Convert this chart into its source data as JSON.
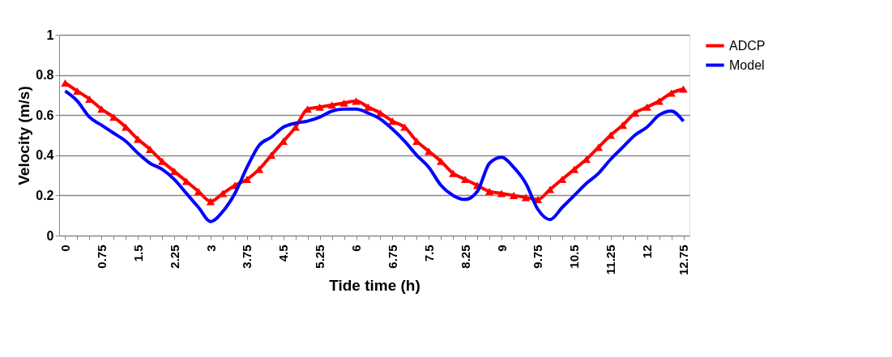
{
  "chart_data": {
    "type": "line",
    "xlabel": "Tide time (h)",
    "ylabel": "Velocity (m/s)",
    "categories": [
      "0",
      null,
      null,
      "0.75",
      null,
      null,
      "1.5",
      null,
      null,
      "2.25",
      null,
      null,
      "3",
      null,
      null,
      "3.75",
      null,
      null,
      "4.5",
      null,
      null,
      "5.25",
      null,
      null,
      "6",
      null,
      null,
      "6.75",
      null,
      null,
      "7.5",
      null,
      null,
      "8.25",
      null,
      null,
      "9",
      null,
      null,
      "9.75",
      null,
      null,
      "10.5",
      null,
      null,
      "11.25",
      null,
      null,
      "12",
      null,
      null,
      "12.75"
    ],
    "series": [
      {
        "name": "ADCP",
        "color": "#ff0000",
        "marker": "triangle",
        "values": [
          0.76,
          0.72,
          0.68,
          0.63,
          0.59,
          0.54,
          0.48,
          0.43,
          0.37,
          0.32,
          0.27,
          0.22,
          0.17,
          0.21,
          0.25,
          0.28,
          0.33,
          0.4,
          0.47,
          0.54,
          0.63,
          0.64,
          0.65,
          0.66,
          0.67,
          0.64,
          0.61,
          0.57,
          0.54,
          0.47,
          0.42,
          0.37,
          0.31,
          0.28,
          0.25,
          0.22,
          0.21,
          0.2,
          0.19,
          0.18,
          0.23,
          0.28,
          0.33,
          0.38,
          0.44,
          0.5,
          0.55,
          0.61,
          0.64,
          0.67,
          0.71,
          0.73
        ]
      },
      {
        "name": "Model",
        "color": "#0000ff",
        "marker": "none",
        "values": [
          0.72,
          0.67,
          0.59,
          0.55,
          0.51,
          0.47,
          0.41,
          0.36,
          0.33,
          0.28,
          0.21,
          0.14,
          0.07,
          0.12,
          0.21,
          0.34,
          0.45,
          0.49,
          0.54,
          0.56,
          0.57,
          0.59,
          0.62,
          0.63,
          0.63,
          0.61,
          0.58,
          0.53,
          0.47,
          0.4,
          0.34,
          0.25,
          0.2,
          0.18,
          0.22,
          0.36,
          0.39,
          0.34,
          0.26,
          0.13,
          0.08,
          0.14,
          0.2,
          0.26,
          0.31,
          0.38,
          0.44,
          0.5,
          0.54,
          0.6,
          0.62,
          0.57
        ]
      }
    ],
    "ylim": [
      0,
      1
    ],
    "yticks": [
      0,
      0.2,
      0.4,
      0.6,
      0.8,
      1
    ],
    "grid": "y",
    "legend": "right",
    "line_style": "solid"
  }
}
